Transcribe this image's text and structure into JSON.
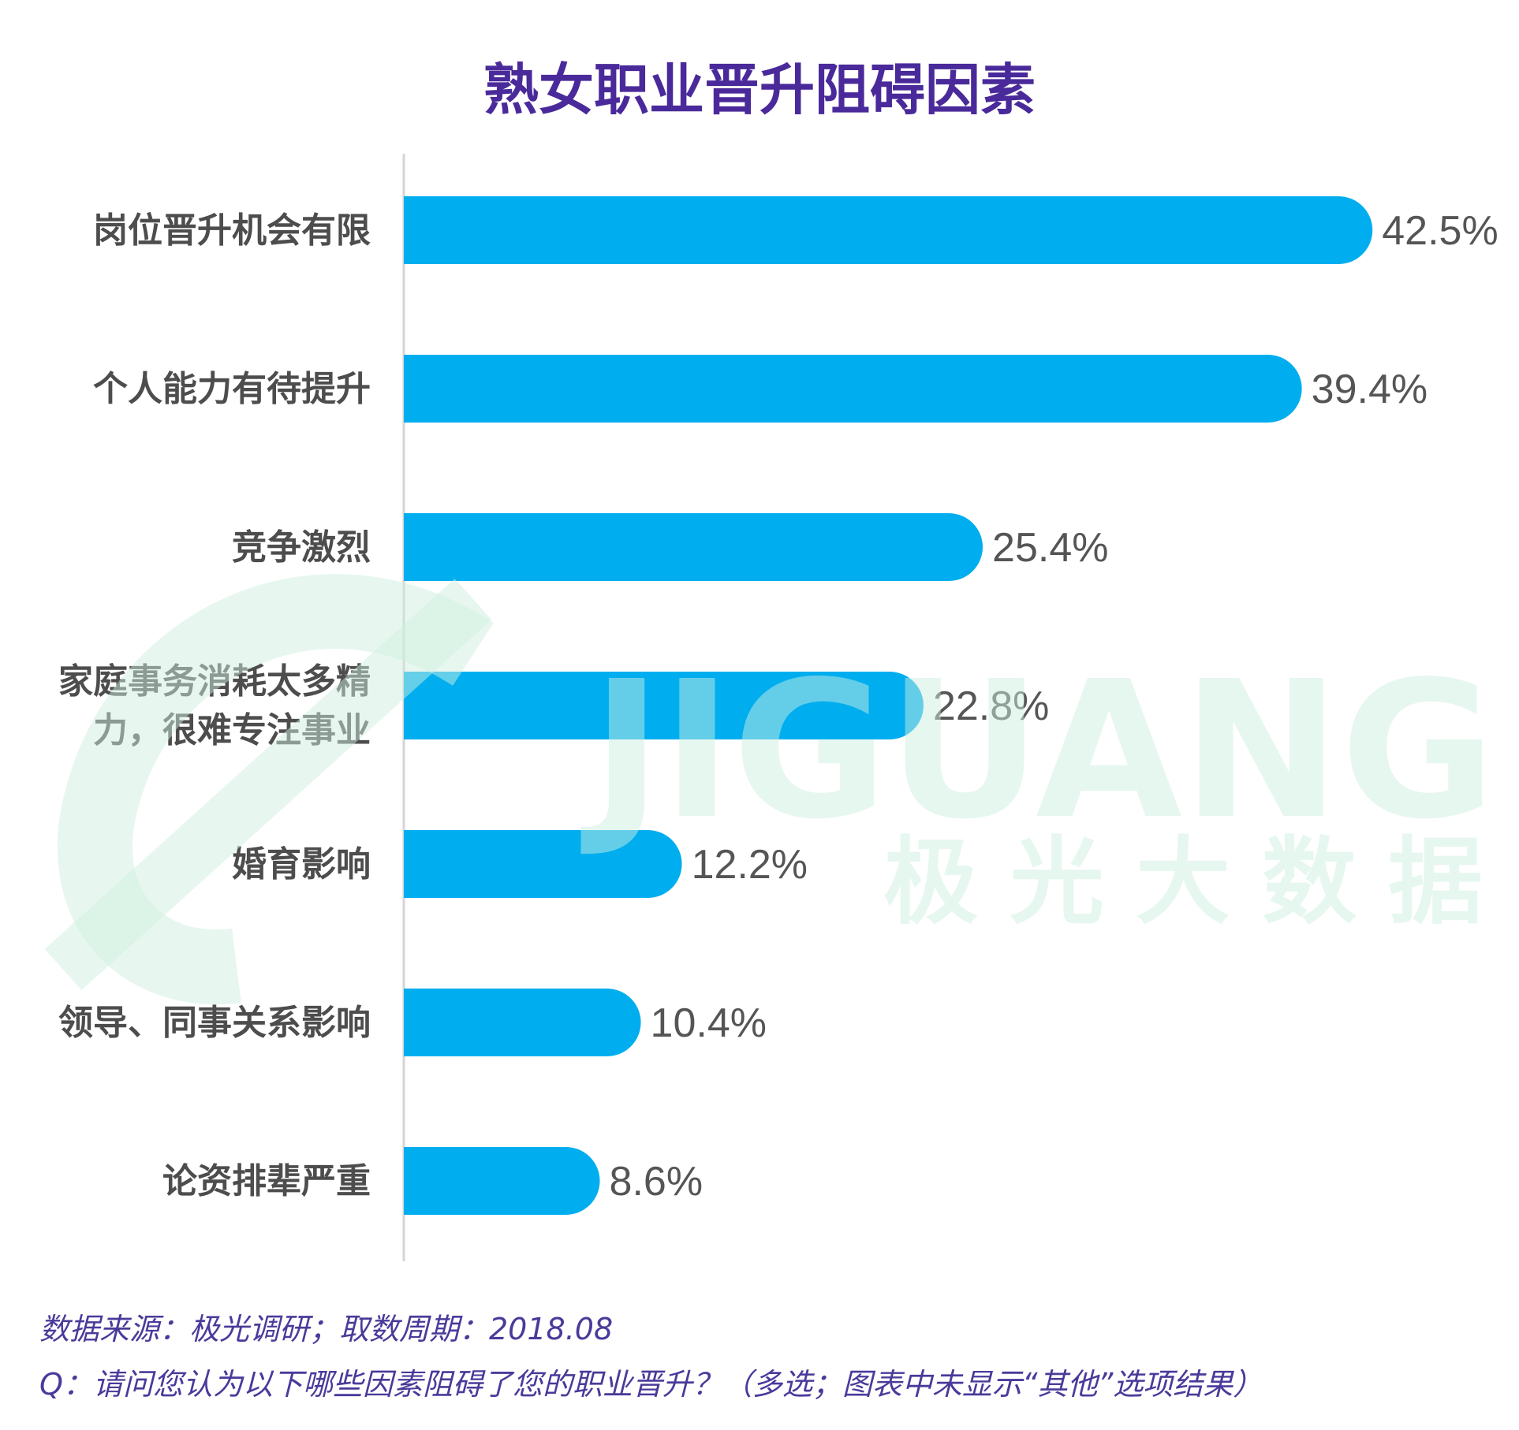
{
  "title": "熟女职业晋升阻碍因素",
  "chart_data": {
    "type": "bar",
    "orientation": "horizontal",
    "title": "熟女职业晋升阻碍因素",
    "categories": [
      [
        "岗位晋升机会有限"
      ],
      [
        "个人能力有待提升"
      ],
      [
        "竞争激烈"
      ],
      [
        "家庭事务消耗太多精",
        "力，很难专注事业"
      ],
      [
        "婚育影响"
      ],
      [
        "领导、同事关系影响"
      ],
      [
        "论资排辈严重"
      ]
    ],
    "values": [
      42.5,
      39.4,
      25.4,
      22.8,
      12.2,
      10.4,
      8.6
    ],
    "value_labels": [
      "42.5%",
      "39.4%",
      "25.4%",
      "22.8%",
      "12.2%",
      "10.4%",
      "8.6%"
    ],
    "bar_color": "#00aeef",
    "grid": false,
    "legend": "none"
  },
  "watermark": {
    "text_en": "JIGUANG",
    "text_cn": "极光大数据",
    "color": "#cdeee0"
  },
  "footer": {
    "source": "数据来源：极光调研；取数周期：2018.08",
    "question": "Q：请问您认为以下哪些因素阻碍了您的职业晋升？（多选；图表中未显示“其他”选项结果）"
  }
}
